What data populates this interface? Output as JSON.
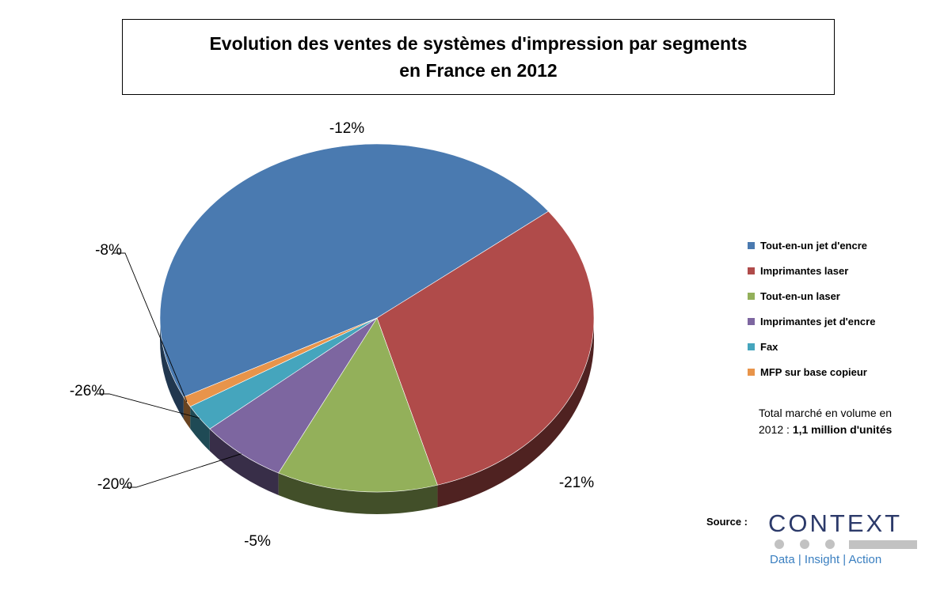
{
  "title": {
    "line1": "Evolution des ventes de systèmes d'impression par segments",
    "line2": "en France en 2012"
  },
  "chart_data": {
    "type": "pie",
    "title": "Evolution des ventes de systèmes d'impression par segments en France en 2012",
    "legend_position": "right",
    "slices": [
      {
        "name": "Tout-en-un jet d'encre",
        "value": 47,
        "label": "-12%",
        "color": "#4a7ab0"
      },
      {
        "name": "Imprimantes laser",
        "value": 31,
        "label": "-21%",
        "color": "#b04b4a"
      },
      {
        "name": "Tout-en-un laser",
        "value": 12,
        "label": "-5%",
        "color": "#93b05a"
      },
      {
        "name": "Imprimantes jet d'encre",
        "value": 6.5,
        "label": "-20%",
        "color": "#7d66a0"
      },
      {
        "name": "Fax",
        "value": 2.5,
        "label": "-26%",
        "color": "#45a5bd"
      },
      {
        "name": "MFP sur base copieur",
        "value": 1,
        "label": "-8%",
        "color": "#e8944a"
      }
    ]
  },
  "total": {
    "text": "Total marché en volume en 2012 : ",
    "bold": "1,1 million d'unités"
  },
  "source_label": "Source :",
  "logo": {
    "word": "CONTEXT",
    "tagline": "Data | Insight | Action"
  }
}
